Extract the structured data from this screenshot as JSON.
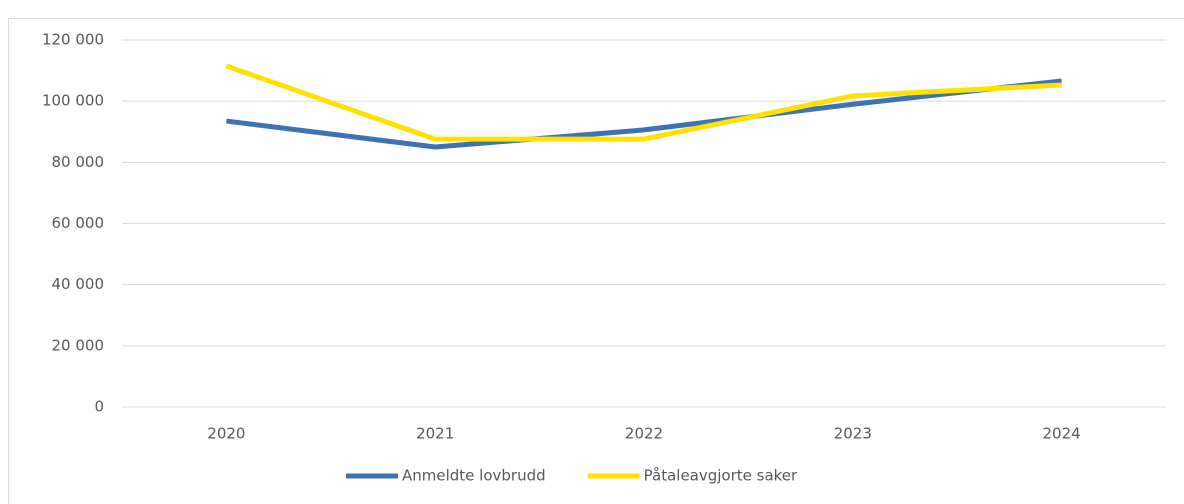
{
  "chart_data": {
    "type": "line",
    "categories": [
      "2020",
      "2021",
      "2022",
      "2023",
      "2024"
    ],
    "series": [
      {
        "name": "Anmeldte lovbrudd",
        "color": "#3d73b4",
        "values": [
          93500,
          85000,
          90600,
          99000,
          106600
        ]
      },
      {
        "name": "Påtaleavgjorte saker",
        "color": "#ffe100",
        "values": [
          111500,
          87600,
          87600,
          101700,
          105300
        ]
      }
    ],
    "ylim": [
      0,
      120000
    ],
    "yticks": [
      0,
      {
        "value": 20000,
        "label": "20 000"
      },
      {
        "value": 40000,
        "label": "40 000"
      },
      {
        "value": 60000,
        "label": "60 000"
      },
      {
        "value": 80000,
        "label": "80 000"
      },
      {
        "value": 100000,
        "label": "100 000"
      },
      {
        "value": 120000,
        "label": "120 000"
      }
    ],
    "grid": true,
    "legend": "bottom"
  }
}
